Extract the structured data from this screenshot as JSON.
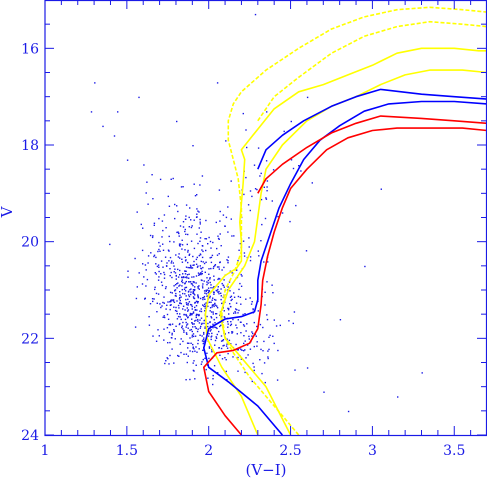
{
  "chart_data": {
    "type": "scatter",
    "title": "",
    "xlabel": "(V−I)",
    "ylabel": "V",
    "xlim": [
      1.0,
      3.7
    ],
    "ylim": [
      24.0,
      15.0
    ],
    "y_inverted": true,
    "grid": false,
    "frame_color": "#1a1ae6",
    "x_ticks": [
      {
        "value": 1.0,
        "label": "1"
      },
      {
        "value": 1.5,
        "label": "1.5"
      },
      {
        "value": 2.0,
        "label": "2"
      },
      {
        "value": 2.5,
        "label": "2.5"
      },
      {
        "value": 3.0,
        "label": "3"
      },
      {
        "value": 3.5,
        "label": "3.5"
      }
    ],
    "y_ticks": [
      {
        "value": 16,
        "label": "16"
      },
      {
        "value": 18,
        "label": "18"
      },
      {
        "value": 20,
        "label": "20"
      },
      {
        "value": 22,
        "label": "22"
      },
      {
        "value": 24,
        "label": "24"
      }
    ],
    "scatter": {
      "color": "#1a1ae6",
      "seed": 7,
      "clusters": [
        {
          "cx": 1.95,
          "cy": 21.3,
          "sx": 0.13,
          "sy": 0.65,
          "n": 600
        },
        {
          "cx": 1.85,
          "cy": 20.4,
          "sx": 0.16,
          "sy": 0.8,
          "n": 260
        },
        {
          "cx": 2.25,
          "cy": 21.9,
          "sx": 0.1,
          "sy": 0.55,
          "n": 90
        },
        {
          "cx": 2.3,
          "cy": 19.5,
          "sx": 0.12,
          "sy": 1.3,
          "n": 70
        }
      ],
      "extra_points": [
        [
          1.3,
          16.7
        ],
        [
          1.28,
          17.3
        ],
        [
          1.35,
          17.6
        ],
        [
          1.44,
          17.3
        ],
        [
          1.5,
          18.3
        ],
        [
          1.42,
          17.8
        ],
        [
          1.57,
          17.0
        ],
        [
          1.6,
          18.4
        ],
        [
          1.65,
          18.6
        ],
        [
          2.05,
          16.7
        ],
        [
          1.8,
          17.5
        ],
        [
          1.9,
          18.0
        ],
        [
          2.1,
          17.9
        ],
        [
          2.5,
          17.5
        ],
        [
          2.6,
          17.0
        ],
        [
          2.8,
          21.6
        ],
        [
          3.05,
          18.9
        ],
        [
          3.3,
          22.7
        ],
        [
          3.15,
          23.2
        ],
        [
          2.7,
          23.1
        ],
        [
          2.85,
          23.5
        ],
        [
          2.95,
          20.5
        ],
        [
          2.35,
          17.3
        ],
        [
          2.6,
          22.6
        ]
      ]
    },
    "series": [
      {
        "name": "",
        "color": "#ffff00",
        "dashed": false,
        "points": [
          [
            2.3,
            24.0
          ],
          [
            2.2,
            23.2
          ],
          [
            2.08,
            22.6
          ],
          [
            1.99,
            22.0
          ],
          [
            1.98,
            21.5
          ],
          [
            2.0,
            21.1
          ],
          [
            2.1,
            20.7
          ],
          [
            2.17,
            20.55
          ],
          [
            2.2,
            20.4
          ],
          [
            2.2,
            20.0
          ],
          [
            2.19,
            19.6
          ],
          [
            2.2,
            19.2
          ],
          [
            2.21,
            18.8
          ],
          [
            2.22,
            18.3
          ],
          [
            2.2,
            18.1
          ],
          [
            2.27,
            17.8
          ],
          [
            2.4,
            17.25
          ],
          [
            2.55,
            16.9
          ],
          [
            2.7,
            16.75
          ],
          [
            2.85,
            16.55
          ],
          [
            3.0,
            16.35
          ],
          [
            3.15,
            16.1
          ],
          [
            3.3,
            16.0
          ],
          [
            3.5,
            16.0
          ],
          [
            3.65,
            16.05
          ],
          [
            3.7,
            16.05
          ]
        ]
      },
      {
        "name": "",
        "color": "#ffff00",
        "dashed": false,
        "points": [
          [
            2.5,
            24.0
          ],
          [
            2.35,
            23.0
          ],
          [
            2.2,
            22.4
          ],
          [
            2.1,
            22.0
          ],
          [
            2.07,
            21.5
          ],
          [
            2.12,
            21.0
          ],
          [
            2.22,
            20.5
          ],
          [
            2.28,
            20.0
          ],
          [
            2.3,
            19.5
          ],
          [
            2.32,
            19.0
          ],
          [
            2.35,
            18.5
          ],
          [
            2.45,
            18.0
          ],
          [
            2.6,
            17.5
          ],
          [
            2.75,
            17.2
          ],
          [
            2.9,
            17.0
          ],
          [
            3.05,
            16.75
          ],
          [
            3.2,
            16.55
          ],
          [
            3.35,
            16.45
          ],
          [
            3.55,
            16.45
          ],
          [
            3.7,
            16.5
          ]
        ]
      },
      {
        "name": "",
        "color": "#ffff00",
        "dashed": true,
        "points": [
          [
            2.55,
            24.0
          ],
          [
            2.4,
            23.4
          ],
          [
            2.25,
            22.8
          ],
          [
            2.15,
            22.3
          ],
          [
            2.1,
            22.0
          ],
          [
            2.08,
            21.5
          ],
          [
            2.1,
            21.0
          ],
          [
            2.16,
            20.6
          ],
          [
            2.2,
            20.2
          ],
          [
            2.2,
            19.8
          ],
          [
            2.2,
            19.3
          ],
          [
            2.18,
            18.7
          ],
          [
            2.15,
            18.3
          ],
          [
            2.12,
            17.9
          ],
          [
            2.12,
            17.5
          ],
          [
            2.15,
            17.15
          ],
          [
            2.2,
            16.9
          ],
          [
            2.35,
            16.45
          ],
          [
            2.55,
            16.0
          ],
          [
            2.75,
            15.6
          ],
          [
            2.95,
            15.35
          ],
          [
            3.15,
            15.2
          ],
          [
            3.35,
            15.15
          ],
          [
            3.55,
            15.2
          ],
          [
            3.7,
            15.25
          ]
        ]
      },
      {
        "name": "",
        "color": "#ffff00",
        "dashed": true,
        "points": [
          [
            2.3,
            17.5
          ],
          [
            2.4,
            17.0
          ],
          [
            2.55,
            16.6
          ],
          [
            2.75,
            16.1
          ],
          [
            2.95,
            15.75
          ],
          [
            3.15,
            15.55
          ],
          [
            3.35,
            15.45
          ],
          [
            3.55,
            15.5
          ],
          [
            3.7,
            15.55
          ]
        ]
      },
      {
        "name": "",
        "color": "#0000ff",
        "dashed": false,
        "points": [
          [
            2.45,
            24.0
          ],
          [
            2.3,
            23.4
          ],
          [
            2.12,
            22.9
          ],
          [
            2.0,
            22.6
          ],
          [
            1.97,
            22.2
          ],
          [
            2.0,
            21.8
          ],
          [
            2.1,
            21.6
          ],
          [
            2.2,
            21.55
          ],
          [
            2.28,
            21.45
          ],
          [
            2.3,
            21.2
          ],
          [
            2.3,
            20.8
          ],
          [
            2.32,
            20.4
          ],
          [
            2.37,
            19.9
          ],
          [
            2.43,
            19.3
          ],
          [
            2.5,
            18.8
          ],
          [
            2.58,
            18.3
          ],
          [
            2.68,
            17.9
          ],
          [
            2.8,
            17.6
          ],
          [
            2.95,
            17.3
          ],
          [
            3.1,
            17.15
          ],
          [
            3.3,
            17.1
          ],
          [
            3.5,
            17.1
          ],
          [
            3.7,
            17.15
          ]
        ]
      },
      {
        "name": "",
        "color": "#0000ff",
        "dashed": false,
        "points": [
          [
            2.3,
            18.5
          ],
          [
            2.35,
            18.1
          ],
          [
            2.45,
            17.8
          ],
          [
            2.58,
            17.5
          ],
          [
            2.75,
            17.2
          ],
          [
            2.9,
            17.0
          ],
          [
            3.05,
            16.85
          ],
          [
            3.3,
            16.95
          ],
          [
            3.5,
            17.0
          ],
          [
            3.7,
            17.05
          ]
        ]
      },
      {
        "name": "",
        "color": "#ff0000",
        "dashed": false,
        "points": [
          [
            2.2,
            24.0
          ],
          [
            2.1,
            23.6
          ],
          [
            2.0,
            23.1
          ],
          [
            1.97,
            22.6
          ],
          [
            2.05,
            22.3
          ],
          [
            2.15,
            22.25
          ],
          [
            2.25,
            22.1
          ],
          [
            2.3,
            21.8
          ],
          [
            2.32,
            21.3
          ],
          [
            2.33,
            20.8
          ],
          [
            2.36,
            20.3
          ],
          [
            2.4,
            19.8
          ],
          [
            2.45,
            19.3
          ],
          [
            2.5,
            18.9
          ],
          [
            2.6,
            18.5
          ],
          [
            2.72,
            18.1
          ],
          [
            2.85,
            17.85
          ],
          [
            3.0,
            17.7
          ],
          [
            3.15,
            17.65
          ],
          [
            3.35,
            17.65
          ],
          [
            3.55,
            17.65
          ],
          [
            3.7,
            17.7
          ]
        ]
      },
      {
        "name": "",
        "color": "#ff0000",
        "dashed": false,
        "points": [
          [
            2.3,
            19.0
          ],
          [
            2.35,
            18.7
          ],
          [
            2.45,
            18.4
          ],
          [
            2.6,
            18.05
          ],
          [
            2.75,
            17.75
          ],
          [
            2.9,
            17.55
          ],
          [
            3.05,
            17.4
          ],
          [
            3.3,
            17.45
          ],
          [
            3.5,
            17.5
          ],
          [
            3.7,
            17.55
          ]
        ]
      }
    ]
  }
}
